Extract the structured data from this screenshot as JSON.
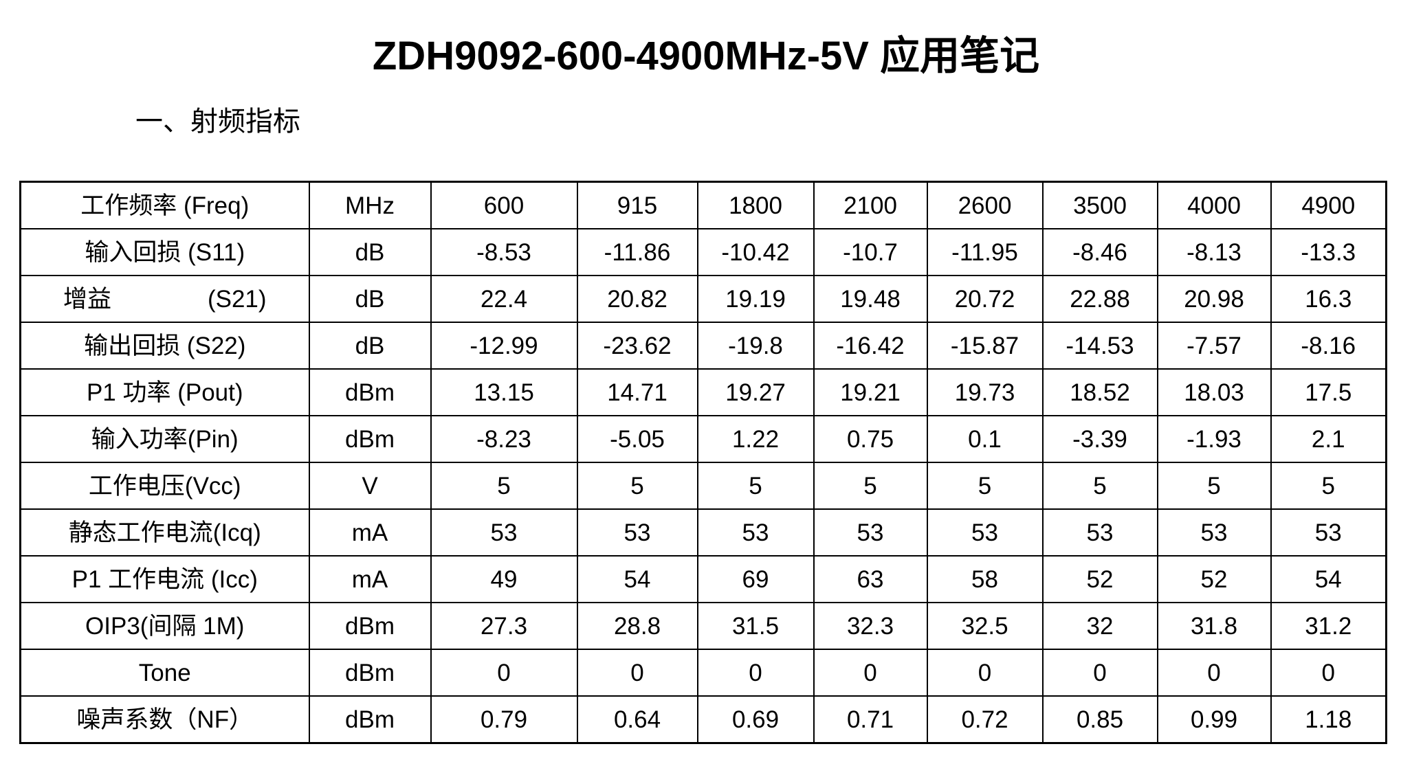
{
  "page": {
    "title": "ZDH9092-600-4900MHz-5V 应用笔记",
    "section_heading": "一、射频指标"
  },
  "table": {
    "frequency_row_label": "工作频率 (Freq)",
    "frequencies_mhz": [
      "600",
      "915",
      "1800",
      "2100",
      "2600",
      "3500",
      "4000",
      "4900"
    ],
    "rows": [
      {
        "label": "工作频率 (Freq)",
        "unit": "MHz",
        "values": [
          "600",
          "915",
          "1800",
          "2100",
          "2600",
          "3500",
          "4000",
          "4900"
        ]
      },
      {
        "label": "输入回损 (S11)",
        "unit": "dB",
        "values": [
          "-8.53",
          "-11.86",
          "-10.42",
          "-10.7",
          "-11.95",
          "-8.46",
          "-8.13",
          "-13.3"
        ]
      },
      {
        "label": "增益　　　　(S21)",
        "unit": "dB",
        "values": [
          "22.4",
          "20.82",
          "19.19",
          "19.48",
          "20.72",
          "22.88",
          "20.98",
          "16.3"
        ]
      },
      {
        "label": "输出回损 (S22)",
        "unit": "dB",
        "values": [
          "-12.99",
          "-23.62",
          "-19.8",
          "-16.42",
          "-15.87",
          "-14.53",
          "-7.57",
          "-8.16"
        ]
      },
      {
        "label": "P1 功率 (Pout)",
        "unit": "dBm",
        "values": [
          "13.15",
          "14.71",
          "19.27",
          "19.21",
          "19.73",
          "18.52",
          "18.03",
          "17.5"
        ]
      },
      {
        "label": "输入功率(Pin)",
        "unit": "dBm",
        "values": [
          "-8.23",
          "-5.05",
          "1.22",
          "0.75",
          "0.1",
          "-3.39",
          "-1.93",
          "2.1"
        ]
      },
      {
        "label": "工作电压(Vcc)",
        "unit": "V",
        "values": [
          "5",
          "5",
          "5",
          "5",
          "5",
          "5",
          "5",
          "5"
        ]
      },
      {
        "label": "静态工作电流(Icq)",
        "unit": "mA",
        "values": [
          "53",
          "53",
          "53",
          "53",
          "53",
          "53",
          "53",
          "53"
        ]
      },
      {
        "label": "P1 工作电流 (Icc)",
        "unit": "mA",
        "values": [
          "49",
          "54",
          "69",
          "63",
          "58",
          "52",
          "52",
          "54"
        ]
      },
      {
        "label": "OIP3(间隔 1M)",
        "unit": "dBm",
        "values": [
          "27.3",
          "28.8",
          "31.5",
          "32.3",
          "32.5",
          "32",
          "31.8",
          "31.2"
        ]
      },
      {
        "label": "Tone",
        "unit": "dBm",
        "values": [
          "0",
          "0",
          "0",
          "0",
          "0",
          "0",
          "0",
          "0"
        ]
      },
      {
        "label": "噪声系数（NF）",
        "unit": "dBm",
        "values": [
          "0.79",
          "0.64",
          "0.69",
          "0.71",
          "0.72",
          "0.85",
          "0.99",
          "1.18"
        ]
      }
    ]
  }
}
